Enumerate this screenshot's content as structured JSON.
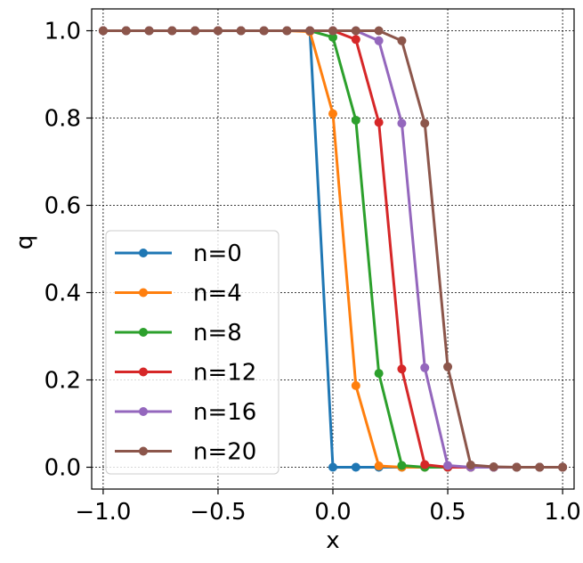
{
  "chart_data": {
    "type": "line",
    "xlabel": "x",
    "ylabel": "q",
    "xlim": [
      -1.05,
      1.05
    ],
    "ylim": [
      -0.05,
      1.05
    ],
    "x_ticks": [
      -1.0,
      -0.5,
      0.0,
      0.5,
      1.0
    ],
    "x_tick_labels": [
      "−1.0",
      "−0.5",
      "0.0",
      "0.5",
      "1.0"
    ],
    "y_ticks": [
      0.0,
      0.2,
      0.4,
      0.6,
      0.8,
      1.0
    ],
    "y_tick_labels": [
      "0.0",
      "0.2",
      "0.4",
      "0.6",
      "0.8",
      "1.0"
    ],
    "grid": true,
    "legend_position": "lower-left",
    "x": [
      -1.0,
      -0.9,
      -0.8,
      -0.7,
      -0.6,
      -0.5,
      -0.4,
      -0.3,
      -0.2,
      -0.1,
      0.0,
      0.1,
      0.2,
      0.3,
      0.4,
      0.5,
      0.6,
      0.7,
      0.8,
      0.9,
      1.0
    ],
    "series": [
      {
        "name": "n=0",
        "color": "#1f77b4",
        "values": [
          1,
          1,
          1,
          1,
          1,
          1,
          1,
          1,
          1,
          1,
          0,
          0,
          0,
          0,
          0,
          0,
          0,
          0,
          0,
          0,
          0
        ]
      },
      {
        "name": "n=4",
        "color": "#ff7f0e",
        "values": [
          1,
          1,
          1,
          1,
          1,
          1,
          1,
          1,
          1,
          0.998,
          0.81,
          0.187,
          0.003,
          0,
          0,
          0,
          0,
          0,
          0,
          0,
          0
        ]
      },
      {
        "name": "n=8",
        "color": "#2ca02c",
        "values": [
          1,
          1,
          1,
          1,
          1,
          1,
          1,
          1,
          1,
          1,
          0.985,
          0.795,
          0.215,
          0.004,
          0,
          0,
          0,
          0,
          0,
          0,
          0
        ]
      },
      {
        "name": "n=12",
        "color": "#d62728",
        "values": [
          1,
          1,
          1,
          1,
          1,
          1,
          1,
          1,
          1,
          1,
          1,
          0.98,
          0.79,
          0.225,
          0.006,
          0,
          0,
          0,
          0,
          0,
          0
        ]
      },
      {
        "name": "n=16",
        "color": "#9467bd",
        "values": [
          1,
          1,
          1,
          1,
          1,
          1,
          1,
          1,
          1,
          1,
          1,
          1,
          0.977,
          0.788,
          0.228,
          0.004,
          0,
          0,
          0,
          0,
          0
        ]
      },
      {
        "name": "n=20",
        "color": "#8c564b",
        "values": [
          1,
          1,
          1,
          1,
          1,
          1,
          1,
          1,
          1,
          1,
          1,
          1,
          1,
          0.977,
          0.788,
          0.23,
          0.005,
          0.001,
          0,
          0,
          0
        ]
      }
    ]
  }
}
